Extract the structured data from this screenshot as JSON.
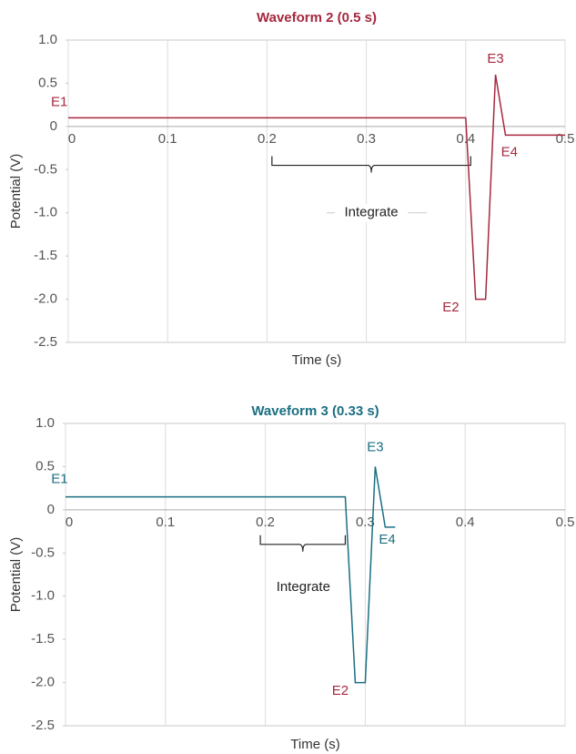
{
  "chart_data": [
    {
      "type": "line",
      "title": "Waveform 2 (0.5 s)",
      "x_label": "Time (s)",
      "y_label": "Potential (V)",
      "xlim": [
        0,
        0.5
      ],
      "xticks": [
        0,
        0.1,
        0.2,
        0.3,
        0.4,
        0.5
      ],
      "ylim": [
        -2.5,
        1
      ],
      "yticks": [
        {
          "value": 1,
          "label": "1.0"
        },
        0.5,
        0,
        -0.5,
        {
          "value": -1,
          "label": "-1.0"
        },
        -1.5,
        {
          "value": -2,
          "label": "-2.0"
        },
        -2.5
      ],
      "grid": "x",
      "series": [
        {
          "color": "#a6283f",
          "x": [
            0,
            0.4,
            0.41,
            0.42,
            0.43,
            0.44,
            0.5
          ],
          "values": [
            0.1,
            0.1,
            -2,
            -2,
            0.6,
            -0.1,
            -0.1
          ]
        }
      ],
      "annotations": [
        {
          "text": "E1",
          "color": "#a6283f"
        },
        {
          "text": "E2",
          "color": "#a6283f"
        },
        {
          "text": "E3",
          "color": "#a6283f"
        },
        {
          "text": "E4",
          "color": "#a6283f"
        },
        {
          "text": "Integrate",
          "color": "#222222"
        }
      ]
    },
    {
      "type": "line",
      "title": "Waveform 3 (0.33 s)",
      "x_label": "Time (s)",
      "y_label": "Potential (V)",
      "xlim": [
        0,
        0.5
      ],
      "xticks": [
        0,
        0.1,
        0.2,
        0.3,
        0.4,
        0.5
      ],
      "ylim": [
        -2.5,
        1
      ],
      "yticks": [
        {
          "value": 1,
          "label": "1.0"
        },
        0.5,
        0,
        -0.5,
        {
          "value": -1,
          "label": "-1.0"
        },
        -1.5,
        {
          "value": -2,
          "label": "-2.0"
        },
        -2.5
      ],
      "grid": "x",
      "series": [
        {
          "color": "#1b6f82",
          "x": [
            0,
            0.28,
            0.29,
            0.3,
            0.31,
            0.32,
            0.33
          ],
          "values": [
            0.15,
            0.15,
            -2,
            -2,
            0.5,
            -0.2,
            -0.2
          ]
        }
      ],
      "annotations": [
        {
          "text": "E1",
          "color": "#1b6f82"
        },
        {
          "text": "E2",
          "color": "#a6283f"
        },
        {
          "text": "E3",
          "color": "#1b6f82"
        },
        {
          "text": "E4",
          "color": "#1b6f82"
        },
        {
          "text": "Integrate",
          "color": "#222222"
        }
      ]
    }
  ]
}
